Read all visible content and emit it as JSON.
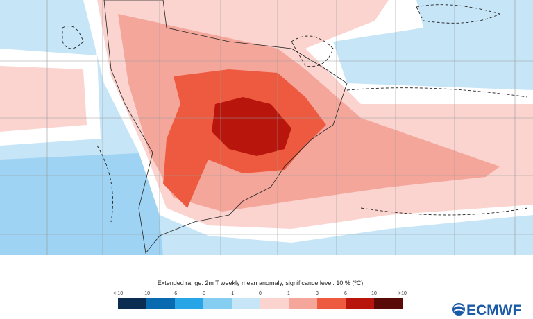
{
  "legend": {
    "title": "Extended range: 2m T weekly mean anomaly, significance level: 10 % (ºC)",
    "labels": [
      "<-10",
      "-10",
      "-6",
      "-3",
      "-1",
      "0",
      "1",
      "3",
      "6",
      "10",
      ">10"
    ],
    "colors": [
      "#0b2d52",
      "#0a6ab0",
      "#27a5e6",
      "#86cdf2",
      "#c6e6f7",
      "#fbd4d0",
      "#f4a69a",
      "#ee5a40",
      "#b8160d",
      "#5a0b08"
    ]
  },
  "logo": "ECMWF"
}
